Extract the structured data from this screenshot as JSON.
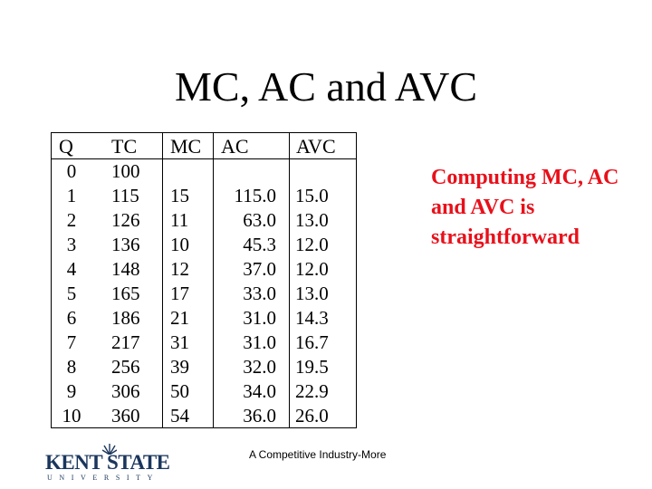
{
  "slide": {
    "title": "MC, AC and AVC",
    "side_note": "Computing MC, AC and AVC is straightforward",
    "footer": "A Competitive Industry-More"
  },
  "logo": {
    "name": "KENT STATE",
    "subtitle": "UNIVERSITY",
    "color": "#1b365d"
  },
  "table": {
    "headers": [
      "Q",
      "TC",
      "MC",
      "AC",
      "AVC"
    ],
    "rows": [
      [
        "0",
        "100",
        "",
        "",
        ""
      ],
      [
        "1",
        "115",
        "15",
        "115.0",
        "15.0"
      ],
      [
        "2",
        "126",
        "11",
        "63.0",
        "13.0"
      ],
      [
        "3",
        "136",
        "10",
        "45.3",
        "12.0"
      ],
      [
        "4",
        "148",
        "12",
        "37.0",
        "12.0"
      ],
      [
        "5",
        "165",
        "17",
        "33.0",
        "13.0"
      ],
      [
        "6",
        "186",
        "21",
        "31.0",
        "14.3"
      ],
      [
        "7",
        "217",
        "31",
        "31.0",
        "16.7"
      ],
      [
        "8",
        "256",
        "39",
        "32.0",
        "19.5"
      ],
      [
        "9",
        "306",
        "50",
        "34.0",
        "22.9"
      ],
      [
        "10",
        "360",
        "54",
        "36.0",
        "26.0"
      ]
    ]
  },
  "colors": {
    "side_note": "#e8101a",
    "text": "#000000"
  }
}
